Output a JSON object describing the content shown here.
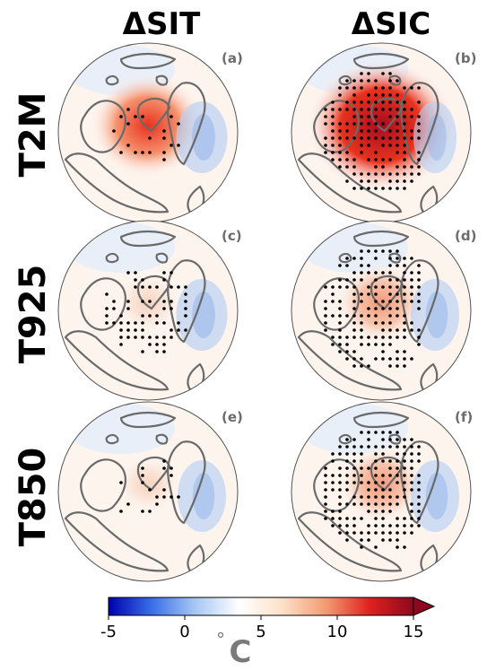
{
  "columns": [
    "ΔSIT",
    "ΔSIC"
  ],
  "rows": [
    "T2M",
    "T925",
    "T850"
  ],
  "panels": [
    {
      "label": "(a)",
      "row": 0,
      "col": 0,
      "arctic_warming": 0.62,
      "blue_cooling": 0.35,
      "stipple": "sparse"
    },
    {
      "label": "(b)",
      "row": 0,
      "col": 1,
      "arctic_warming": 0.95,
      "blue_cooling": 0.2,
      "stipple": "dense"
    },
    {
      "label": "(c)",
      "row": 1,
      "col": 0,
      "arctic_warming": 0.1,
      "blue_cooling": 0.35,
      "stipple": "medium"
    },
    {
      "label": "(d)",
      "row": 1,
      "col": 1,
      "arctic_warming": 0.35,
      "blue_cooling": 0.3,
      "stipple": "dense"
    },
    {
      "label": "(e)",
      "row": 2,
      "col": 0,
      "arctic_warming": 0.08,
      "blue_cooling": 0.3,
      "stipple": "sparse"
    },
    {
      "label": "(f)",
      "row": 2,
      "col": 1,
      "arctic_warming": 0.3,
      "blue_cooling": 0.3,
      "stipple": "dense"
    }
  ],
  "colorbar": {
    "min": -5,
    "max": 15,
    "ticks": [
      -5,
      0,
      5,
      10,
      15
    ],
    "tick_labels": [
      "-5",
      "0",
      "5",
      "10",
      "15"
    ],
    "unit_degree": "°",
    "unit_letter": "C",
    "colors": [
      "#0000b0",
      "#3a6fe8",
      "#a8c8f4",
      "#ffffff",
      "#fde0c8",
      "#f39a72",
      "#e0201e",
      "#8b0a1e"
    ]
  }
}
